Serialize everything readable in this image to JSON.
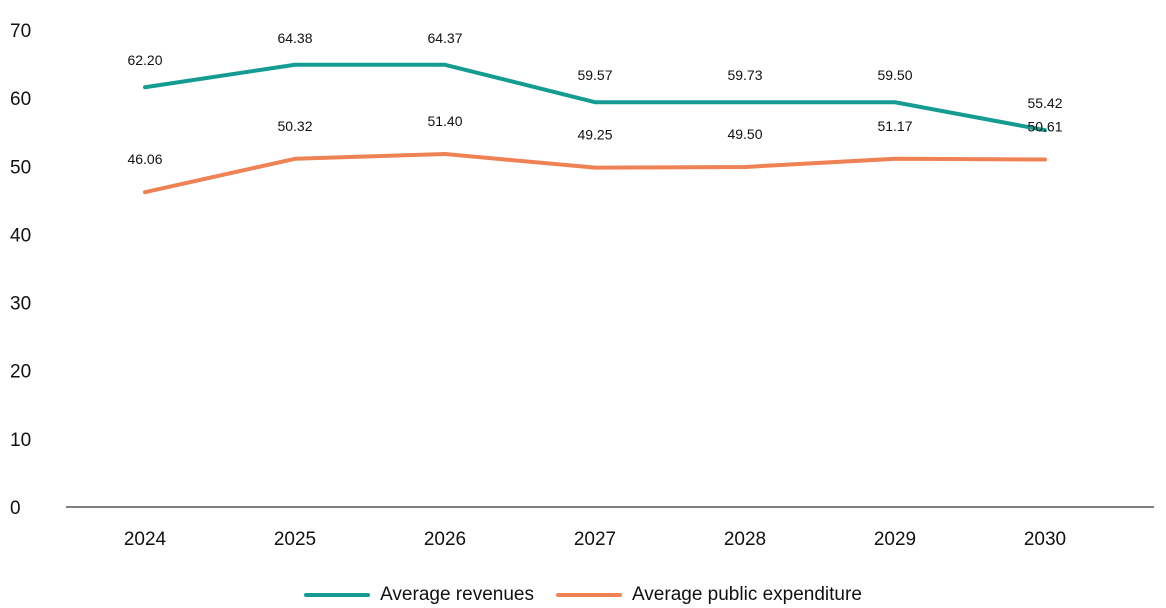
{
  "chart_data": {
    "type": "line",
    "title": "",
    "xlabel": "",
    "ylabel": "",
    "categories": [
      "2024",
      "2025",
      "2026",
      "2027",
      "2028",
      "2029",
      "2030"
    ],
    "ylim": [
      0,
      70
    ],
    "yticks": [
      "0",
      "10",
      "20",
      "30",
      "40",
      "50",
      "60",
      "70"
    ],
    "grid": false,
    "legend_position": "bottom",
    "series": [
      {
        "name": "Average revenues",
        "color": "#149c92",
        "values": [
          61.6,
          64.9,
          64.9,
          59.4,
          59.4,
          59.4,
          55.3
        ],
        "labels": [
          "62.20",
          "64.38",
          "64.37",
          "59.57",
          "59.73",
          "59.50",
          "55.42"
        ]
      },
      {
        "name": "Average public expenditure",
        "color": "#ee8254",
        "values": [
          46.2,
          51.1,
          51.8,
          49.8,
          49.9,
          51.1,
          51.0
        ],
        "labels": [
          "46.06",
          "50.32",
          "51.40",
          "49.25",
          "49.50",
          "51.17",
          "50.61"
        ]
      }
    ]
  }
}
